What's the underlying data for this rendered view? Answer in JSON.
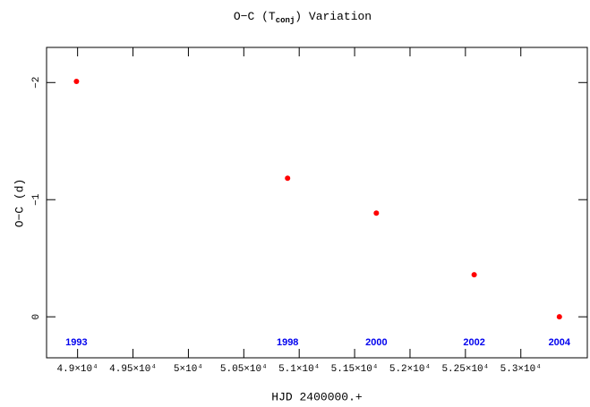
{
  "chart_data": {
    "type": "scatter",
    "title": [
      "O−C (T",
      "conj",
      ") Variation"
    ],
    "x_label": "HJD 2400000.+",
    "y_label": "O−C (d)",
    "xlim": [
      48720,
      53600
    ],
    "ylim": [
      0.35,
      -2.3
    ],
    "xticks": [
      {
        "value": 49000,
        "label": "4.9×10⁴"
      },
      {
        "value": 49500,
        "label": "4.95×10⁴"
      },
      {
        "value": 50000,
        "label": "5×10⁴"
      },
      {
        "value": 50500,
        "label": "5.05×10⁴"
      },
      {
        "value": 51000,
        "label": "5.1×10⁴"
      },
      {
        "value": 51500,
        "label": "5.15×10⁴"
      },
      {
        "value": 52000,
        "label": "5.2×10⁴"
      },
      {
        "value": 52500,
        "label": "5.25×10⁴"
      },
      {
        "value": 53000,
        "label": "5.3×10⁴"
      }
    ],
    "yticks": [
      {
        "value": -2,
        "label": "−2"
      },
      {
        "value": -1,
        "label": "−1"
      },
      0
    ],
    "series": [
      {
        "color": "#ff0000",
        "x": [
          48990,
          50895,
          51696,
          52579,
          53348
        ],
        "values": [
          -2.01,
          -1.183,
          -0.885,
          -0.359,
          0
        ],
        "point_labels": [
          "1993",
          "1998",
          "2000",
          "2002",
          "2004"
        ],
        "point_label_color": "#0000ee"
      }
    ]
  }
}
